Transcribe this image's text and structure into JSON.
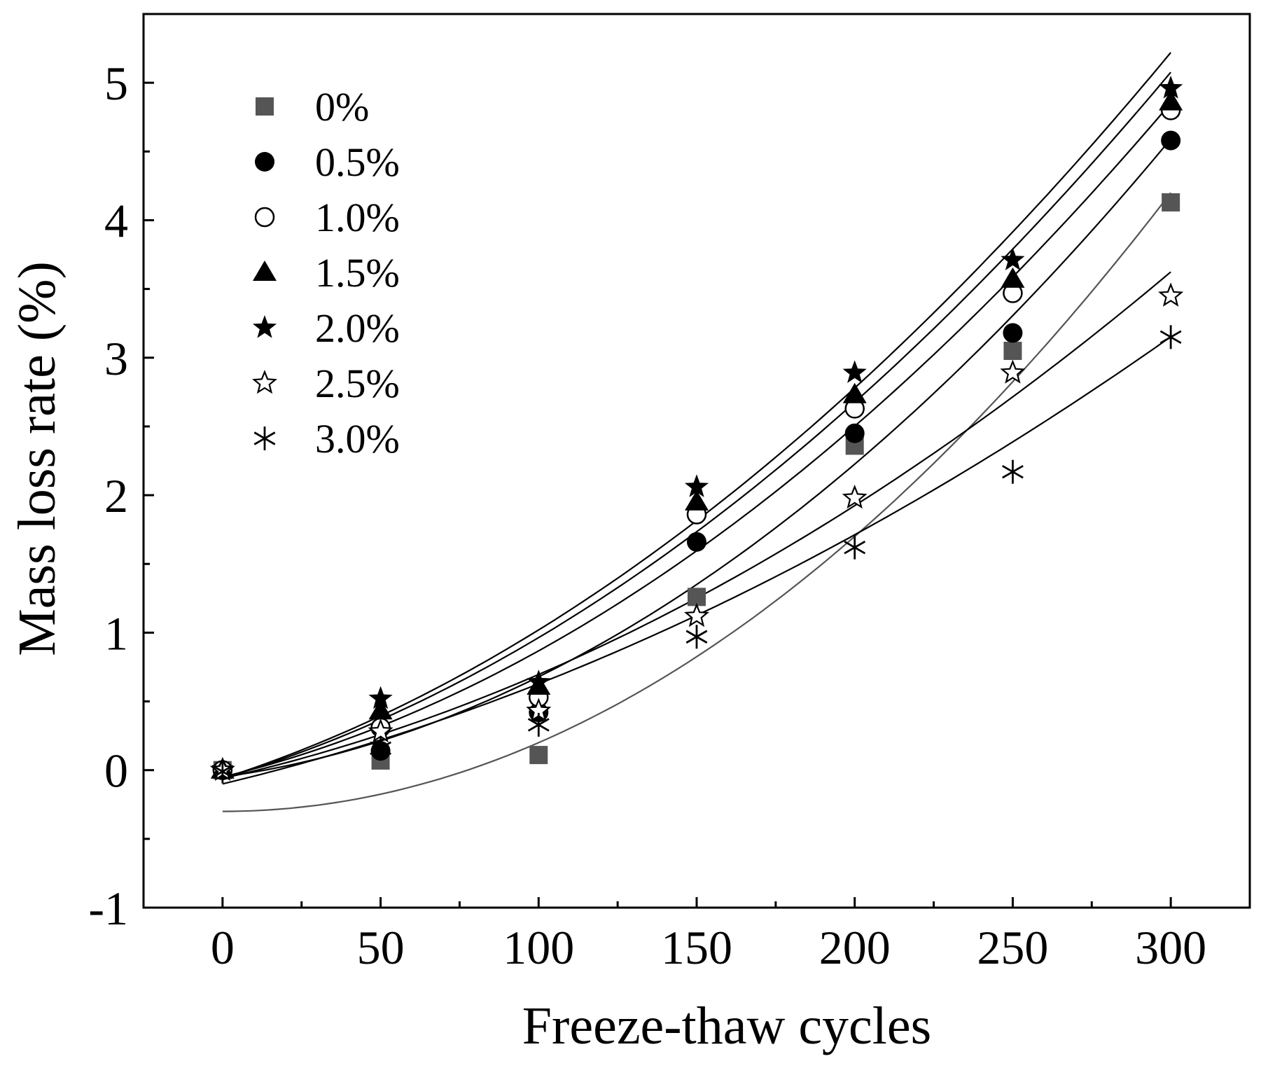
{
  "chart_data": {
    "type": "scatter",
    "title": "",
    "xlabel": "Freeze-thaw cycles",
    "ylabel": "Mass loss rate (%)",
    "xlim": [
      -25,
      325
    ],
    "ylim": [
      -1,
      5.5
    ],
    "xticks": [
      0,
      50,
      100,
      150,
      200,
      250,
      300
    ],
    "xtick_labels": [
      "0",
      "50",
      "100",
      "150",
      "200",
      "250",
      "300"
    ],
    "yticks": [
      -1,
      0,
      1,
      2,
      3,
      4,
      5
    ],
    "ytick_labels": [
      "-1",
      "0",
      "1",
      "2",
      "3",
      "4",
      "5"
    ],
    "legend_position": "top-left",
    "grid": false,
    "x": [
      0,
      50,
      100,
      150,
      200,
      250,
      300
    ],
    "series": [
      {
        "name": "0%",
        "marker": "filled-square",
        "color": "#555555",
        "values": [
          0.0,
          0.07,
          0.11,
          1.26,
          2.36,
          3.05,
          4.13
        ],
        "fit": {
          "a": -0.3,
          "b": 0.0,
          "c": 5e-05
        }
      },
      {
        "name": "0.5%",
        "marker": "filled-circle",
        "color": "#000000",
        "values": [
          0.0,
          0.14,
          0.42,
          1.66,
          2.45,
          3.18,
          4.58
        ],
        "fit": {
          "a": -0.05,
          "b": 0.0032,
          "c": 4.09e-05
        }
      },
      {
        "name": "1.0%",
        "marker": "open-circle",
        "color": "#000000",
        "values": [
          0.0,
          0.31,
          0.53,
          1.86,
          2.63,
          3.47,
          4.8
        ],
        "fit": {
          "a": -0.05,
          "b": 0.0056,
          "c": 3.58e-05
        }
      },
      {
        "name": "1.5%",
        "marker": "filled-triangle",
        "color": "#000000",
        "values": [
          0.0,
          0.43,
          0.61,
          1.95,
          2.73,
          3.57,
          4.86
        ],
        "fit": {
          "a": -0.06,
          "b": 0.0068,
          "c": 3.44e-05
        }
      },
      {
        "name": "2.0%",
        "marker": "filled-star",
        "color": "#000000",
        "values": [
          0.0,
          0.52,
          0.64,
          2.06,
          2.89,
          3.71,
          4.96
        ],
        "fit": {
          "a": -0.06,
          "b": 0.0074,
          "c": 3.4e-05
        }
      },
      {
        "name": "2.5%",
        "marker": "open-star",
        "color": "#000000",
        "values": [
          0.0,
          0.28,
          0.43,
          1.12,
          1.98,
          2.89,
          3.45
        ],
        "fit": {
          "a": -0.06,
          "b": 0.0052,
          "c": 2.36e-05
        }
      },
      {
        "name": "3.0%",
        "marker": "asterisk",
        "color": "#000000",
        "values": [
          -0.01,
          0.16,
          0.33,
          0.97,
          1.62,
          2.17,
          3.15
        ],
        "fit": {
          "a": -0.1,
          "b": 0.0055,
          "c": 1.78e-05
        }
      }
    ]
  }
}
